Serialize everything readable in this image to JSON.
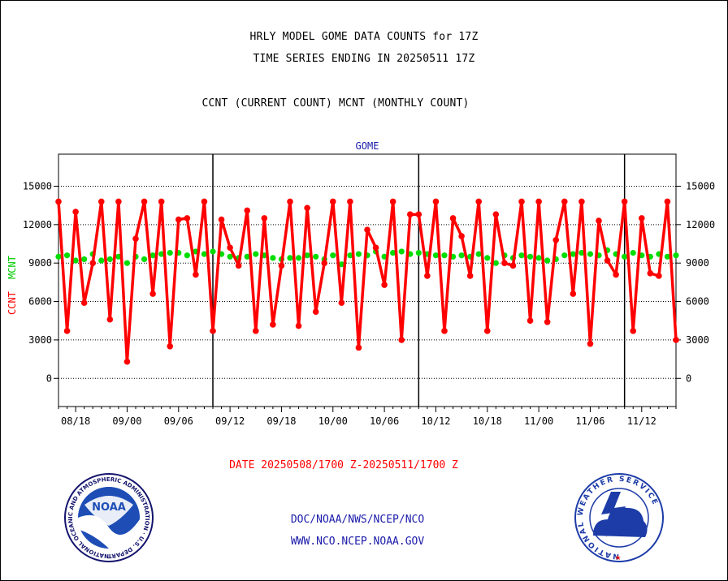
{
  "header": {
    "line1": "HRLY MODEL GOME DATA COUNTS for 17Z",
    "line2": "TIME SERIES ENDING IN 20250511 17Z",
    "line3": "CCNT (CURRENT COUNT) MCNT (MONTHLY COUNT)"
  },
  "footer": {
    "date_range": "DATE 20250508/1700 Z-20250511/1700 Z",
    "org_line": "DOC/NOAA/NWS/NCEP/NCO",
    "url_line": "WWW.NCO.NCEP.NOAA.GOV",
    "noaa_logo_text": "NOAA",
    "noaa_seal_text": "NATIONAL OCEANIC AND ATMOSPHERIC ADMINISTRATION · U.S. DEPARTMENT OF COMMERCE",
    "nws_seal_text": "NATIONAL WEATHER SERVICE"
  },
  "colors": {
    "ccnt": "#ff0000",
    "mcnt": "#00dd00",
    "plot_title": "#1a1aaa"
  },
  "chart_data": {
    "type": "line",
    "title": "GOME",
    "ylabel_ccnt": "CCNT",
    "ylabel_mcnt": "MCNT",
    "ylim": [
      -2200,
      17500
    ],
    "yticks": [
      0,
      3000,
      6000,
      9000,
      12000,
      15000
    ],
    "ytick_labels": [
      "0",
      "3000",
      "6000",
      "9000",
      "12000",
      "15000"
    ],
    "xticks": [
      "08/18",
      "09/00",
      "09/06",
      "09/12",
      "09/18",
      "10/00",
      "10/06",
      "10/12",
      "10/18",
      "11/00",
      "11/06",
      "11/12"
    ],
    "x_start_hour": -2,
    "x_end_hour": 70,
    "day_boundary_hours": [
      16,
      40,
      64
    ],
    "grid": true,
    "series": [
      {
        "name": "CCNT",
        "values": [
          13800,
          3700,
          13000,
          5900,
          9000,
          13800,
          4600,
          13800,
          1300,
          10900,
          13800,
          6600,
          13800,
          2500,
          12400,
          12500,
          8100,
          13800,
          3700,
          12400,
          10200,
          8800,
          13100,
          3700,
          12500,
          4200,
          8800,
          13800,
          4100,
          13300,
          5200,
          9000,
          13800,
          5900,
          13800,
          2400,
          11600,
          10200,
          7300,
          13800,
          3000,
          12800,
          12800,
          8000,
          13800,
          3700,
          12500,
          11100,
          8000,
          13800,
          3700,
          12800,
          9000,
          8800,
          13800,
          4500,
          13800,
          4400,
          10800,
          13800,
          6600,
          13800,
          2700,
          12300,
          9200,
          8100,
          13800,
          3700,
          12500,
          8200,
          8000,
          13800,
          3000
        ]
      },
      {
        "name": "MCNT",
        "values": [
          9500,
          9600,
          9200,
          9300,
          9700,
          9200,
          9300,
          9500,
          9000,
          9500,
          9300,
          9600,
          9700,
          9800,
          9800,
          9600,
          9900,
          9700,
          9900,
          9700,
          9500,
          9400,
          9500,
          9700,
          9600,
          9400,
          9300,
          9400,
          9400,
          9600,
          9500,
          9300,
          9600,
          8900,
          9600,
          9700,
          9600,
          9900,
          9500,
          9800,
          9900,
          9700,
          9800,
          9700,
          9600,
          9600,
          9500,
          9600,
          9500,
          9700,
          9400,
          9000,
          9600,
          9400,
          9600,
          9500,
          9400,
          9200,
          9300,
          9600,
          9700,
          9800,
          9700,
          9600,
          10000,
          9700,
          9500,
          9800,
          9600,
          9500,
          9700,
          9500,
          9600
        ]
      }
    ]
  }
}
